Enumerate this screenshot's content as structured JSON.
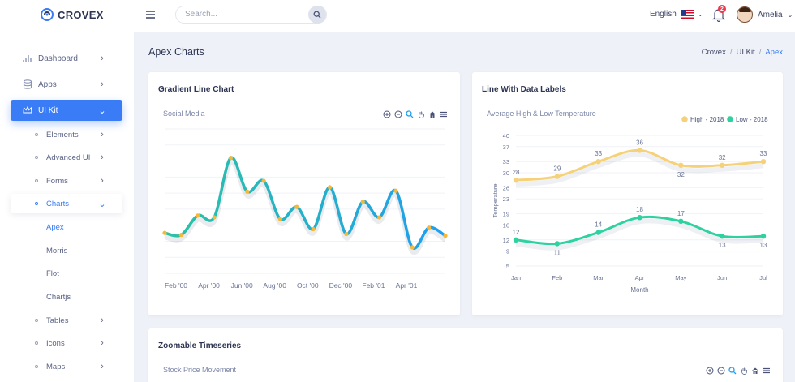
{
  "brand": {
    "name": "CROVEX"
  },
  "search": {
    "placeholder": "Search..."
  },
  "header": {
    "language": "English",
    "notifications_count": "2",
    "user_name": "Amelia"
  },
  "sidebar": {
    "items": [
      {
        "label": "Dashboard"
      },
      {
        "label": "Apps"
      },
      {
        "label": "UI Kit"
      }
    ],
    "ui_kit_children": [
      {
        "label": "Elements"
      },
      {
        "label": "Advanced UI"
      },
      {
        "label": "Forms"
      },
      {
        "label": "Charts"
      },
      {
        "label": "Tables"
      },
      {
        "label": "Icons"
      },
      {
        "label": "Maps"
      }
    ],
    "charts_children": [
      {
        "label": "Apex"
      },
      {
        "label": "Morris"
      },
      {
        "label": "Flot"
      },
      {
        "label": "Chartjs"
      }
    ]
  },
  "page": {
    "title": "Apex Charts",
    "breadcrumb": [
      "Crovex",
      "UI Kit",
      "Apex"
    ]
  },
  "cards": {
    "gradient": {
      "title": "Gradient Line Chart",
      "subtitle": "Social Media"
    },
    "labels": {
      "title": "Line With Data Labels",
      "subtitle": "Average High & Low Temperature"
    },
    "zoom": {
      "title": "Zoomable Timeseries",
      "subtitle": "Stock Price Movement"
    }
  },
  "colors": {
    "accent": "#3a7cf5",
    "gradient_start": "#2bc3a3",
    "gradient_end": "#1f9ef0",
    "marker": "#f5b83a",
    "high": "#f5d27a",
    "low": "#2ed2a0"
  },
  "chart_data": [
    {
      "type": "line",
      "title": "Social Media",
      "x_tick_labels": [
        "Feb '00",
        "Apr '00",
        "Jun '00",
        "Aug '00",
        "Oct '00",
        "Dec '00",
        "Feb '01",
        "Apr '01"
      ],
      "series": [
        {
          "values": [
            4,
            3.3,
            10,
            9.4,
            30,
            18.3,
            22,
            8.8,
            13,
            5.3,
            19.8,
            3.6,
            14.8,
            9.4,
            18.6,
            -1,
            5.8,
            3
          ]
        }
      ],
      "ylim": [
        -10,
        40
      ],
      "grid": true,
      "legend": "none"
    },
    {
      "type": "line",
      "title": "Average High & Low Temperature",
      "xlabel": "Month",
      "ylabel": "Temperature",
      "categories": [
        "Jan",
        "Feb",
        "Mar",
        "Apr",
        "May",
        "Jun",
        "Jul"
      ],
      "series": [
        {
          "name": "High - 2018",
          "values": [
            28,
            29,
            33,
            36,
            32,
            32,
            33
          ]
        },
        {
          "name": "Low - 2018",
          "values": [
            12,
            11,
            14,
            18,
            17,
            13,
            13
          ]
        }
      ],
      "y_ticks": [
        5,
        9,
        12,
        16,
        19,
        23,
        26,
        30,
        33,
        37,
        40
      ],
      "ylim": [
        5,
        40
      ],
      "grid": true,
      "legend": "top-right"
    }
  ]
}
